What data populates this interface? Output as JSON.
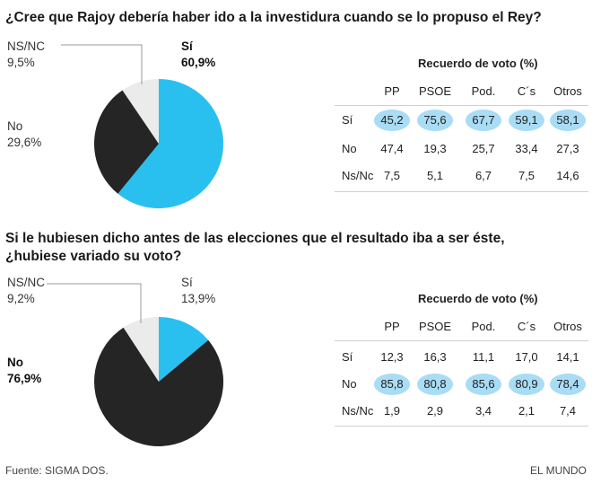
{
  "chart_data": [
    {
      "type": "pie",
      "title": "¿Cree que Rajoy debería haber ido a la investidura cuando se lo propuso el Rey?",
      "slices": [
        {
          "label": "Sí",
          "value": 60.9,
          "value_label": "60,9%",
          "color": "#29c0f0"
        },
        {
          "label": "No",
          "value": 29.6,
          "value_label": "29,6%",
          "color": "#252525"
        },
        {
          "label": "NS/NC",
          "value": 9.5,
          "value_label": "9,5%",
          "color": "#ebebeb"
        }
      ],
      "table": {
        "title": "Recuerdo de voto (%)",
        "columns": [
          "PP",
          "PSOE",
          "Pod.",
          "C´s",
          "Otros"
        ],
        "rows": [
          {
            "label": "Sí",
            "values": [
              "45,2",
              "75,6",
              "67,7",
              "59,1",
              "58,1"
            ],
            "highlight": true
          },
          {
            "label": "No",
            "values": [
              "47,4",
              "19,3",
              "25,7",
              "33,4",
              "27,3"
            ],
            "highlight": false
          },
          {
            "label": "Ns/Nc",
            "values": [
              "7,5",
              "5,1",
              "6,7",
              "7,5",
              "14,6"
            ],
            "highlight": false
          }
        ]
      }
    },
    {
      "type": "pie",
      "title_line1": "Si le hubiesen dicho antes de las elecciones que el resultado iba a ser éste,",
      "title_line2": "¿hubiese variado su voto?",
      "slices": [
        {
          "label": "Sí",
          "value": 13.9,
          "value_label": "13,9%",
          "color": "#29c0f0"
        },
        {
          "label": "No",
          "value": 76.9,
          "value_label": "76,9%",
          "color": "#252525"
        },
        {
          "label": "NS/NC",
          "value": 9.2,
          "value_label": "9,2%",
          "color": "#ebebeb"
        }
      ],
      "table": {
        "title": "Recuerdo de voto (%)",
        "columns": [
          "PP",
          "PSOE",
          "Pod.",
          "C´s",
          "Otros"
        ],
        "rows": [
          {
            "label": "Sí",
            "values": [
              "12,3",
              "16,3",
              "11,1",
              "17,0",
              "14,1"
            ],
            "highlight": false
          },
          {
            "label": "No",
            "values": [
              "85,8",
              "80,8",
              "85,6",
              "80,9",
              "78,4"
            ],
            "highlight": true
          },
          {
            "label": "Ns/Nc",
            "values": [
              "1,9",
              "2,9",
              "3,4",
              "2,1",
              "7,4"
            ],
            "highlight": false
          }
        ]
      }
    }
  ],
  "footer": {
    "source": "Fuente: SIGMA DOS.",
    "brand": "EL MUNDO"
  }
}
